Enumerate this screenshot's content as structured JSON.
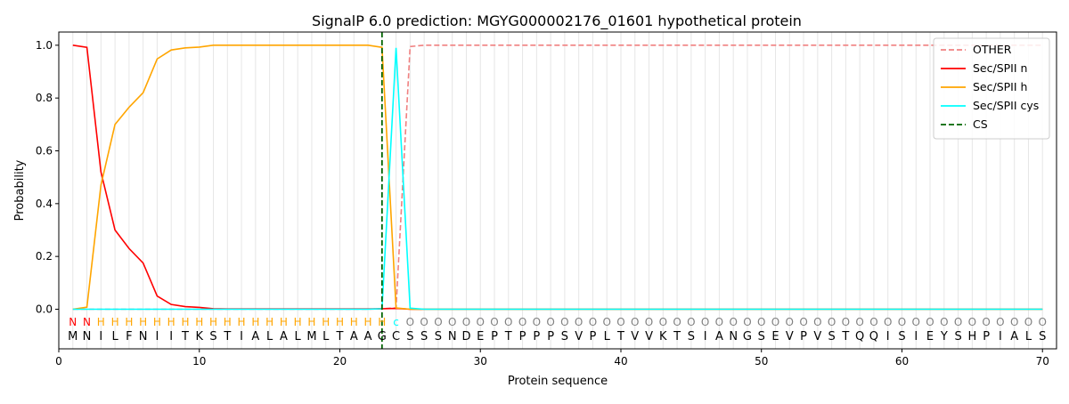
{
  "chart_data": {
    "type": "line",
    "title": "SignalP 6.0 prediction: MGYG000002176_01601 hypothetical protein",
    "xlabel": "Protein sequence",
    "ylabel": "Probability",
    "xlim": [
      0,
      71
    ],
    "ylim": [
      -0.15,
      1.05
    ],
    "xticks": [
      0,
      10,
      20,
      30,
      40,
      50,
      60,
      70
    ],
    "yticks": [
      0.0,
      0.2,
      0.4,
      0.6,
      0.8,
      1.0
    ],
    "ytick_labels": [
      "0.0",
      "0.2",
      "0.4",
      "0.6",
      "0.8",
      "1.0"
    ],
    "legend_position": "top-right",
    "sequence": [
      "M",
      "N",
      "I",
      "L",
      "F",
      "N",
      "I",
      "I",
      "T",
      "K",
      "S",
      "T",
      "I",
      "A",
      "L",
      "A",
      "L",
      "M",
      "L",
      "T",
      "A",
      "A",
      "G",
      "C",
      "S",
      "S",
      "S",
      "N",
      "D",
      "E",
      "P",
      "T",
      "P",
      "P",
      "P",
      "S",
      "V",
      "P",
      "L",
      "T",
      "V",
      "V",
      "K",
      "T",
      "S",
      "I",
      "A",
      "N",
      "G",
      "S",
      "E",
      "V",
      "P",
      "V",
      "S",
      "T",
      "Q",
      "Q",
      "I",
      "S",
      "I",
      "E",
      "Y",
      "S",
      "H",
      "P",
      "I",
      "A",
      "L",
      "S"
    ],
    "region_labels": [
      "N",
      "N",
      "H",
      "H",
      "H",
      "H",
      "H",
      "H",
      "H",
      "H",
      "H",
      "H",
      "H",
      "H",
      "H",
      "H",
      "H",
      "H",
      "H",
      "H",
      "H",
      "H",
      "H",
      "C",
      "O",
      "O",
      "O",
      "O",
      "O",
      "O",
      "O",
      "O",
      "O",
      "O",
      "O",
      "O",
      "O",
      "O",
      "O",
      "O",
      "O",
      "O",
      "O",
      "O",
      "O",
      "O",
      "O",
      "O",
      "O",
      "O",
      "O",
      "O",
      "O",
      "O",
      "O",
      "O",
      "O",
      "O",
      "O",
      "O",
      "O",
      "O",
      "O",
      "O",
      "O",
      "O",
      "O",
      "O",
      "O",
      "O"
    ],
    "region_label_display": [
      "N",
      "N",
      "H",
      "H",
      "H",
      "H",
      "H",
      "H",
      "H",
      "H",
      "H",
      "H",
      "H",
      "H",
      "H",
      "H",
      "H",
      "H",
      "H",
      "H",
      "H",
      "H",
      "H",
      "c",
      "O",
      "O",
      "O",
      "O",
      "O",
      "O",
      "O",
      "O",
      "O",
      "O",
      "O",
      "O",
      "O",
      "O",
      "O",
      "O",
      "O",
      "O",
      "O",
      "O",
      "O",
      "O",
      "O",
      "O",
      "O",
      "O",
      "O",
      "O",
      "O",
      "O",
      "O",
      "O",
      "O",
      "O",
      "O",
      "O",
      "O",
      "O",
      "O",
      "O",
      "O",
      "O",
      "O",
      "O",
      "O",
      "O"
    ],
    "region_colors": {
      "N": "#ff0000",
      "H": "#ffa500",
      "C": "#00ffff",
      "O": "#808080"
    },
    "cs_position": 23,
    "series": [
      {
        "name": "OTHER",
        "color": "#f08080",
        "dash": "dashed",
        "values": [
          0,
          0,
          0,
          0,
          0,
          0,
          0,
          0,
          0,
          0,
          0,
          0,
          0,
          0,
          0,
          0,
          0,
          0,
          0,
          0,
          0,
          0,
          0.002,
          0.005,
          0.995,
          1,
          1,
          1,
          1,
          1,
          1,
          1,
          1,
          1,
          1,
          1,
          1,
          1,
          1,
          1,
          1,
          1,
          1,
          1,
          1,
          1,
          1,
          1,
          1,
          1,
          1,
          1,
          1,
          1,
          1,
          1,
          1,
          1,
          1,
          1,
          1,
          1,
          1,
          1,
          1,
          1,
          1,
          1,
          1,
          1
        ]
      },
      {
        "name": "Sec/SPII n",
        "color": "#ff0000",
        "dash": "solid",
        "values": [
          1.0,
          0.992,
          0.52,
          0.3,
          0.23,
          0.175,
          0.05,
          0.018,
          0.01,
          0.007,
          0.002,
          0.001,
          0.001,
          0.001,
          0.001,
          0.001,
          0.001,
          0.001,
          0.001,
          0.001,
          0.001,
          0.001,
          0.002,
          0.003,
          0,
          0,
          0,
          0,
          0,
          0,
          0,
          0,
          0,
          0,
          0,
          0,
          0,
          0,
          0,
          0,
          0,
          0,
          0,
          0,
          0,
          0,
          0,
          0,
          0,
          0,
          0,
          0,
          0,
          0,
          0,
          0,
          0,
          0,
          0,
          0,
          0,
          0,
          0,
          0,
          0,
          0,
          0,
          0,
          0,
          0
        ]
      },
      {
        "name": "Sec/SPII h",
        "color": "#ffa500",
        "dash": "solid",
        "values": [
          0,
          0.008,
          0.47,
          0.7,
          0.765,
          0.82,
          0.948,
          0.982,
          0.99,
          0.993,
          1.0,
          1.0,
          1.0,
          1.0,
          1.0,
          1.0,
          1.0,
          1.0,
          1.0,
          1.0,
          1.0,
          1.0,
          0.992,
          0.005,
          0,
          0,
          0,
          0,
          0,
          0,
          0,
          0,
          0,
          0,
          0,
          0,
          0,
          0,
          0,
          0,
          0,
          0,
          0,
          0,
          0,
          0,
          0,
          0,
          0,
          0,
          0,
          0,
          0,
          0,
          0,
          0,
          0,
          0,
          0,
          0,
          0,
          0,
          0,
          0,
          0,
          0,
          0,
          0,
          0,
          0
        ]
      },
      {
        "name": "Sec/SPII cys",
        "color": "#00ffff",
        "dash": "solid",
        "values": [
          0,
          0,
          0,
          0,
          0,
          0,
          0,
          0,
          0,
          0,
          0,
          0,
          0,
          0,
          0,
          0,
          0,
          0,
          0,
          0,
          0,
          0,
          0.002,
          0.99,
          0.004,
          0,
          0,
          0,
          0,
          0,
          0,
          0,
          0,
          0,
          0,
          0,
          0,
          0,
          0,
          0,
          0,
          0,
          0,
          0,
          0,
          0,
          0,
          0,
          0,
          0,
          0,
          0,
          0,
          0,
          0,
          0,
          0,
          0,
          0,
          0,
          0,
          0,
          0,
          0,
          0,
          0,
          0,
          0,
          0,
          0
        ]
      },
      {
        "name": "CS",
        "color": "#006400",
        "dash": "dashed",
        "kind": "vline",
        "at": 23
      }
    ]
  }
}
